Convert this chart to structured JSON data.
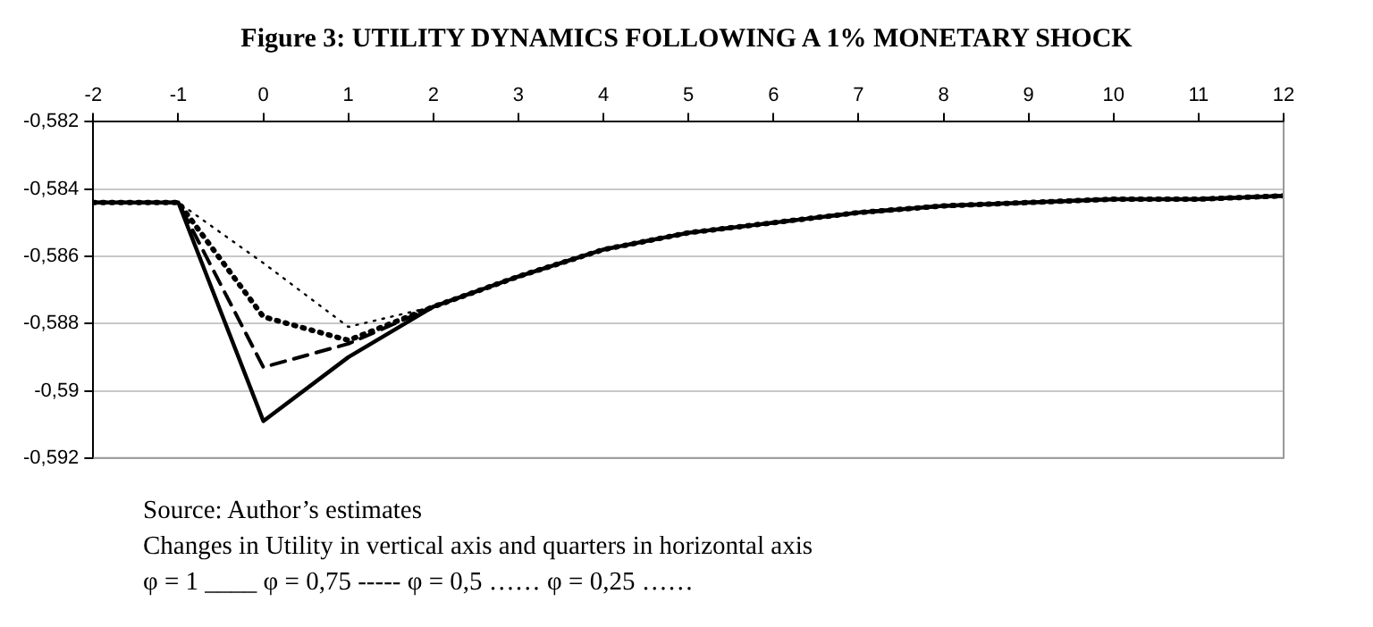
{
  "chart_data": {
    "type": "line",
    "title": "Figure 3: UTILITY DYNAMICS FOLLOWING A 1% MONETARY SHOCK",
    "annotations": [
      "Source: Author’s estimates",
      "Changes in Utility in vertical axis and quarters in horizontal axis",
      "φ = 1 ____  φ = 0,75 -----  φ = 0,5 ……  φ = 0,25 ……"
    ],
    "x": [
      -2,
      -1,
      0,
      1,
      2,
      3,
      4,
      5,
      6,
      7,
      8,
      9,
      10,
      11,
      12
    ],
    "series": [
      {
        "color": "#000000",
        "line_style": "solid",
        "values": [
          -0.5844,
          -0.5844,
          -0.5909,
          -0.589,
          -0.5875,
          -0.5866,
          -0.5858,
          -0.5853,
          -0.585,
          -0.5847,
          -0.5845,
          -0.5844,
          -0.5843,
          -0.5843,
          -0.5842
        ]
      },
      {
        "color": "#000000",
        "line_style": "dashed",
        "values": [
          -0.5844,
          -0.5844,
          -0.5893,
          -0.5886,
          -0.5875,
          -0.5866,
          -0.5858,
          -0.5853,
          -0.585,
          -0.5847,
          -0.5845,
          -0.5844,
          -0.5843,
          -0.5843,
          -0.5842
        ]
      },
      {
        "color": "#000000",
        "line_style": "dotted",
        "values": [
          -0.5844,
          -0.5844,
          -0.5878,
          -0.5885,
          -0.5875,
          -0.5866,
          -0.5858,
          -0.5853,
          -0.585,
          -0.5847,
          -0.5845,
          -0.5844,
          -0.5843,
          -0.5843,
          -0.5842
        ]
      },
      {
        "color": "#000000",
        "line_style": "dotted",
        "values": [
          -0.5844,
          -0.5844,
          -0.5862,
          -0.5881,
          -0.5875,
          -0.5866,
          -0.5858,
          -0.5853,
          -0.585,
          -0.5847,
          -0.5845,
          -0.5844,
          -0.5843,
          -0.5843,
          -0.5842
        ]
      }
    ],
    "xlim": [
      -2,
      12
    ],
    "xticks": [
      -2,
      -1,
      0,
      1,
      2,
      3,
      4,
      5,
      6,
      7,
      8,
      9,
      10,
      11,
      12
    ],
    "ylim": [
      -0.592,
      -0.582
    ],
    "yticks": [
      {
        "value": -0.592,
        "label": "-0,592"
      },
      {
        "value": -0.59,
        "label": "-0,59"
      },
      {
        "value": -0.588,
        "label": "-0,588"
      },
      {
        "value": -0.586,
        "label": "-0,586"
      },
      {
        "value": -0.584,
        "label": "-0,584"
      },
      {
        "value": -0.582,
        "label": "-0,582"
      }
    ],
    "grid": "y",
    "legend": false,
    "marker": "none"
  }
}
